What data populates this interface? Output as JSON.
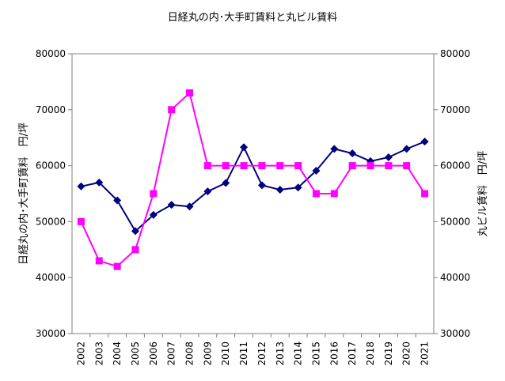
{
  "chart_data": {
    "type": "line",
    "title": "日経丸の内･大手町賃料と丸ビル賃料",
    "ylabel_left": "日経丸の内･大手町賃料　円/坪",
    "ylabel_right": "丸ビル賃料　円/坪",
    "categories": [
      "2002",
      "2003",
      "2004",
      "2005",
      "2006",
      "2007",
      "2008",
      "2009",
      "2010",
      "2011",
      "2012",
      "2013",
      "2014",
      "2015",
      "2016",
      "2017",
      "2018",
      "2019",
      "2020",
      "2021"
    ],
    "ylim": [
      30000,
      80000
    ],
    "yticks": [
      "30000",
      "40000",
      "50000",
      "60000",
      "70000",
      "80000"
    ],
    "series": [
      {
        "axis": "left",
        "color": "#000080",
        "marker": "diamond",
        "values": [
          56300,
          57000,
          53800,
          48300,
          51200,
          53000,
          52700,
          55400,
          56900,
          63300,
          56500,
          55700,
          56100,
          59100,
          63000,
          62200,
          60800,
          61500,
          63000,
          64300
        ]
      },
      {
        "axis": "right",
        "color": "#ff00ff",
        "marker": "square",
        "values": [
          50000,
          43000,
          42000,
          45000,
          55000,
          70000,
          73000,
          60000,
          60000,
          60000,
          60000,
          60000,
          60000,
          55000,
          55000,
          60000,
          60000,
          60000,
          60000,
          55000
        ]
      }
    ],
    "grid": false,
    "legend": "none"
  }
}
